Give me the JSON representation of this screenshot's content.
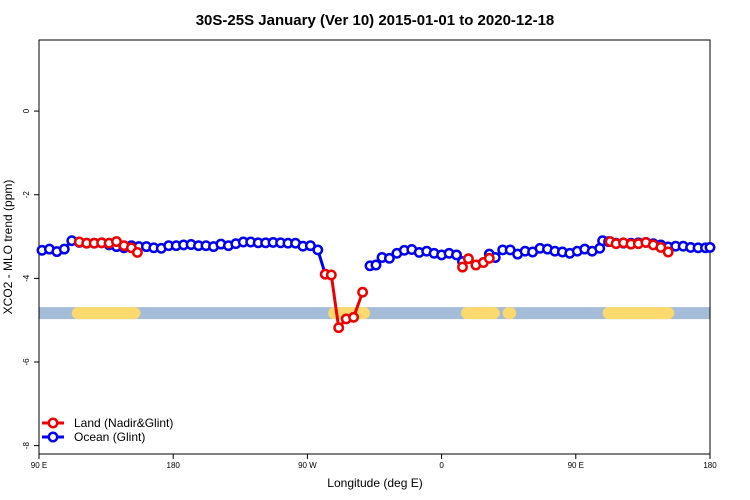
{
  "chart_data": {
    "type": "line",
    "title": "30S-25S January (Ver 10)   2015-01-01 to 2020-12-18",
    "xlabel": "Longitude (deg E)",
    "ylabel": "XCO2 - MLO trend (ppm)",
    "xlim": [
      90,
      540
    ],
    "ylim": [
      -8.2,
      1.7
    ],
    "x_ticks": [
      {
        "value": 90,
        "label": "90 E"
      },
      {
        "value": 180,
        "label": "180"
      },
      {
        "value": 270,
        "label": "90 W"
      },
      {
        "value": 360,
        "label": "0"
      },
      {
        "value": 450,
        "label": "90 E"
      },
      {
        "value": 540,
        "label": "180"
      }
    ],
    "y_ticks": [
      {
        "value": 0,
        "label": "0"
      },
      {
        "value": -2,
        "label": "-2"
      },
      {
        "value": -4,
        "label": "-4"
      },
      {
        "value": -6,
        "label": "-6"
      },
      {
        "value": -8,
        "label": "-8"
      }
    ],
    "legend_position": "bottom-left",
    "land_strip": {
      "y": -4.83,
      "ocean_color": "#a4bcd8",
      "land_color": "#fbd96e",
      "land_ranges": [
        [
          116,
          154
        ],
        [
          288,
          308
        ],
        [
          377,
          395
        ],
        [
          405,
          406
        ],
        [
          472,
          512
        ]
      ]
    },
    "series": [
      {
        "name": "Ocean (Glint)",
        "color": "#0000ee",
        "segments": [
          {
            "x": [
              92,
              97,
              102,
              107,
              112,
              117,
              122,
              127,
              132,
              137,
              142,
              147,
              152,
              157,
              162,
              167,
              172,
              177,
              182,
              187,
              192,
              197,
              202,
              207,
              212,
              217,
              222,
              227,
              232,
              237,
              242,
              247,
              252,
              257,
              262,
              267,
              272,
              277,
              282
            ],
            "y": [
              -3.33,
              -3.3,
              -3.36,
              -3.3,
              -3.1,
              -3.14,
              -3.16,
              -3.16,
              -3.15,
              -3.2,
              -3.24,
              -3.27,
              -3.22,
              -3.24,
              -3.24,
              -3.27,
              -3.28,
              -3.22,
              -3.22,
              -3.2,
              -3.19,
              -3.22,
              -3.22,
              -3.24,
              -3.18,
              -3.22,
              -3.17,
              -3.13,
              -3.13,
              -3.15,
              -3.15,
              -3.14,
              -3.15,
              -3.16,
              -3.16,
              -3.23,
              -3.22,
              -3.32,
              -3.9
            ]
          },
          {
            "x": [
              312,
              316,
              320,
              325,
              330,
              335,
              340,
              345,
              350,
              355,
              360,
              365,
              370,
              374
            ],
            "y": [
              -3.7,
              -3.68,
              -3.5,
              -3.52,
              -3.4,
              -3.33,
              -3.31,
              -3.38,
              -3.35,
              -3.4,
              -3.44,
              -3.4,
              -3.44,
              -3.6
            ]
          },
          {
            "x": [
              392,
              396,
              401,
              406,
              411,
              416,
              421,
              426,
              431,
              436,
              441,
              446,
              451,
              456,
              461,
              466
            ],
            "y": [
              -3.42,
              -3.5,
              -3.32,
              -3.32,
              -3.42,
              -3.35,
              -3.37,
              -3.28,
              -3.3,
              -3.35,
              -3.37,
              -3.4,
              -3.35,
              -3.3,
              -3.35,
              -3.28
            ]
          },
          {
            "x": [
              468,
              472,
              477,
              482,
              487,
              492,
              497,
              502,
              507,
              512,
              517,
              522,
              527,
              532,
              537,
              540
            ],
            "y": [
              -3.1,
              -3.12,
              -3.16,
              -3.16,
              -3.16,
              -3.15,
              -3.14,
              -3.17,
              -3.2,
              -3.25,
              -3.23,
              -3.23,
              -3.26,
              -3.27,
              -3.27,
              -3.26
            ]
          }
        ]
      },
      {
        "name": "Land (Nadir&Glint)",
        "color": "#ee0000",
        "segments": [
          {
            "x": [
              117,
              122,
              127,
              132,
              137,
              142,
              147,
              152,
              156
            ],
            "y": [
              -3.13,
              -3.16,
              -3.16,
              -3.15,
              -3.16,
              -3.12,
              -3.22,
              -3.27,
              -3.38
            ]
          },
          {
            "x": [
              282,
              286,
              291,
              296,
              301,
              307
            ],
            "y": [
              -3.9,
              -3.92,
              -5.18,
              -4.97,
              -4.93,
              -4.33
            ]
          },
          {
            "x": [
              374,
              378,
              383,
              388,
              392
            ],
            "y": [
              -3.73,
              -3.53,
              -3.68,
              -3.62,
              -3.52
            ]
          },
          {
            "x": [
              473,
              477,
              482,
              487,
              492,
              497,
              502,
              507,
              512
            ],
            "y": [
              -3.12,
              -3.17,
              -3.15,
              -3.18,
              -3.17,
              -3.14,
              -3.2,
              -3.26,
              -3.37
            ]
          }
        ]
      }
    ]
  }
}
